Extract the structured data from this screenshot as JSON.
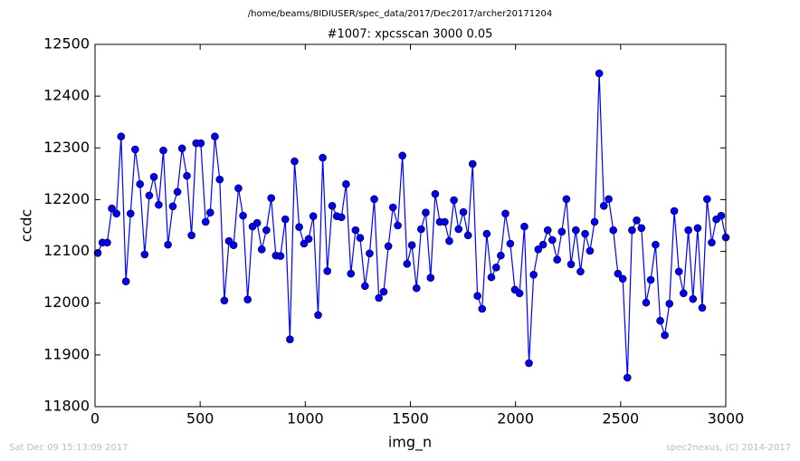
{
  "chart_data": {
    "type": "line",
    "suptitle": "/home/beams/8IDIUSER/spec_data/2017/Dec2017/archer20171204",
    "title": "#1007: xpcsscan 3000 0.05",
    "xlabel": "img_n",
    "ylabel": "ccdc",
    "footer_left": "Sat Dec 09 15:13:09 2017",
    "footer_right": "spec2nexus, (C) 2014-2017",
    "color": "#0000ff",
    "x": [
      13,
      35,
      58,
      80,
      102,
      124,
      147,
      169,
      191,
      214,
      236,
      258,
      280,
      303,
      325,
      347,
      370,
      392,
      414,
      437,
      459,
      481,
      503,
      526,
      548,
      570,
      593,
      615,
      637,
      659,
      682,
      704,
      726,
      749,
      771,
      793,
      815,
      838,
      860,
      882,
      905,
      927,
      949,
      971,
      994,
      1016,
      1038,
      1061,
      1083,
      1105,
      1128,
      1150,
      1172,
      1194,
      1217,
      1239,
      1261,
      1284,
      1306,
      1328,
      1350,
      1373,
      1395,
      1417,
      1440,
      1462,
      1484,
      1507,
      1529,
      1551,
      1573,
      1596,
      1618,
      1640,
      1663,
      1685,
      1707,
      1729,
      1752,
      1774,
      1796,
      1819,
      1841,
      1863,
      1885,
      1908,
      1930,
      1952,
      1975,
      1997,
      2019,
      2042,
      2064,
      2086,
      2108,
      2131,
      2153,
      2175,
      2198,
      2220,
      2242,
      2264,
      2287,
      2309,
      2331,
      2354,
      2376,
      2398,
      2420,
      2443,
      2465,
      2487,
      2510,
      2532,
      2554,
      2576,
      2599,
      2621,
      2643,
      2666,
      2688,
      2710,
      2732,
      2755,
      2777,
      2799,
      2822,
      2844,
      2866,
      2888,
      2911,
      2933,
      2955,
      2978,
      3000
    ],
    "values": [
      12097,
      12117,
      12117,
      12183,
      12173,
      12322,
      12042,
      12173,
      12297,
      12230,
      12094,
      12208,
      12244,
      12190,
      12295,
      12113,
      12187,
      12215,
      12299,
      12246,
      12131,
      12309,
      12309,
      12157,
      12175,
      12322,
      12239,
      12005,
      12120,
      12112,
      12222,
      12169,
      12007,
      12148,
      12155,
      12104,
      12141,
      12203,
      12092,
      12091,
      12162,
      11930,
      12274,
      12147,
      12115,
      12124,
      12168,
      11977,
      12281,
      12062,
      12188,
      12168,
      12166,
      12230,
      12057,
      12141,
      12126,
      12033,
      12096,
      12201,
      12010,
      12022,
      12110,
      12185,
      12150,
      12285,
      12076,
      12112,
      12029,
      12143,
      12175,
      12049,
      12211,
      12157,
      12157,
      12120,
      12199,
      12143,
      12176,
      12131,
      12269,
      12014,
      11989,
      12134,
      12050,
      12069,
      12092,
      12173,
      12115,
      12026,
      12019,
      12148,
      11884,
      12055,
      12104,
      12113,
      12141,
      12122,
      12084,
      12138,
      12201,
      12075,
      12141,
      12061,
      12134,
      12101,
      12157,
      12444,
      12188,
      12201,
      12141,
      12057,
      12047,
      11856,
      12141,
      12160,
      12145,
      12001,
      12045,
      12113,
      11966,
      11938,
      11999,
      12178,
      12061,
      12019,
      12141,
      12008,
      12145,
      11991,
      12201,
      12117,
      12162,
      12169,
      12127
    ],
    "xlim": [
      0,
      3000
    ],
    "xticks": [
      0,
      500,
      1000,
      1500,
      2000,
      2500,
      3000
    ],
    "ylim": [
      11800,
      12500
    ],
    "yticks": [
      11800,
      11900,
      12000,
      12100,
      12200,
      12300,
      12400,
      12500
    ]
  }
}
